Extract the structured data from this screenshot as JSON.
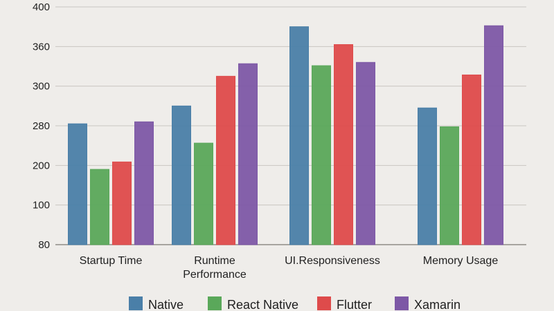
{
  "chart_data": {
    "type": "bar",
    "categories": [
      "Startup Time",
      "Runtime\nPerformance",
      "UI.Responsiveness",
      "Memory Usage"
    ],
    "series": [
      {
        "name": "Native",
        "color": "#4a7fa8",
        "values": [
          281,
          290,
          380,
          289
        ]
      },
      {
        "name": "React Native",
        "color": "#5aa85a",
        "values": [
          190,
          245,
          331,
          278
        ]
      },
      {
        "name": "Flutter",
        "color": "#de4b4b",
        "values": [
          207,
          315,
          362,
          317
        ]
      },
      {
        "name": "Xamarin",
        "color": "#7d58a6",
        "values": [
          282,
          334,
          336,
          381
        ]
      }
    ],
    "y_ticks": [
      "80",
      "100",
      "200",
      "280",
      "300",
      "360",
      "400"
    ],
    "title": "",
    "xlabel": "",
    "ylabel": "",
    "grid": true,
    "legend_position": "bottom"
  }
}
